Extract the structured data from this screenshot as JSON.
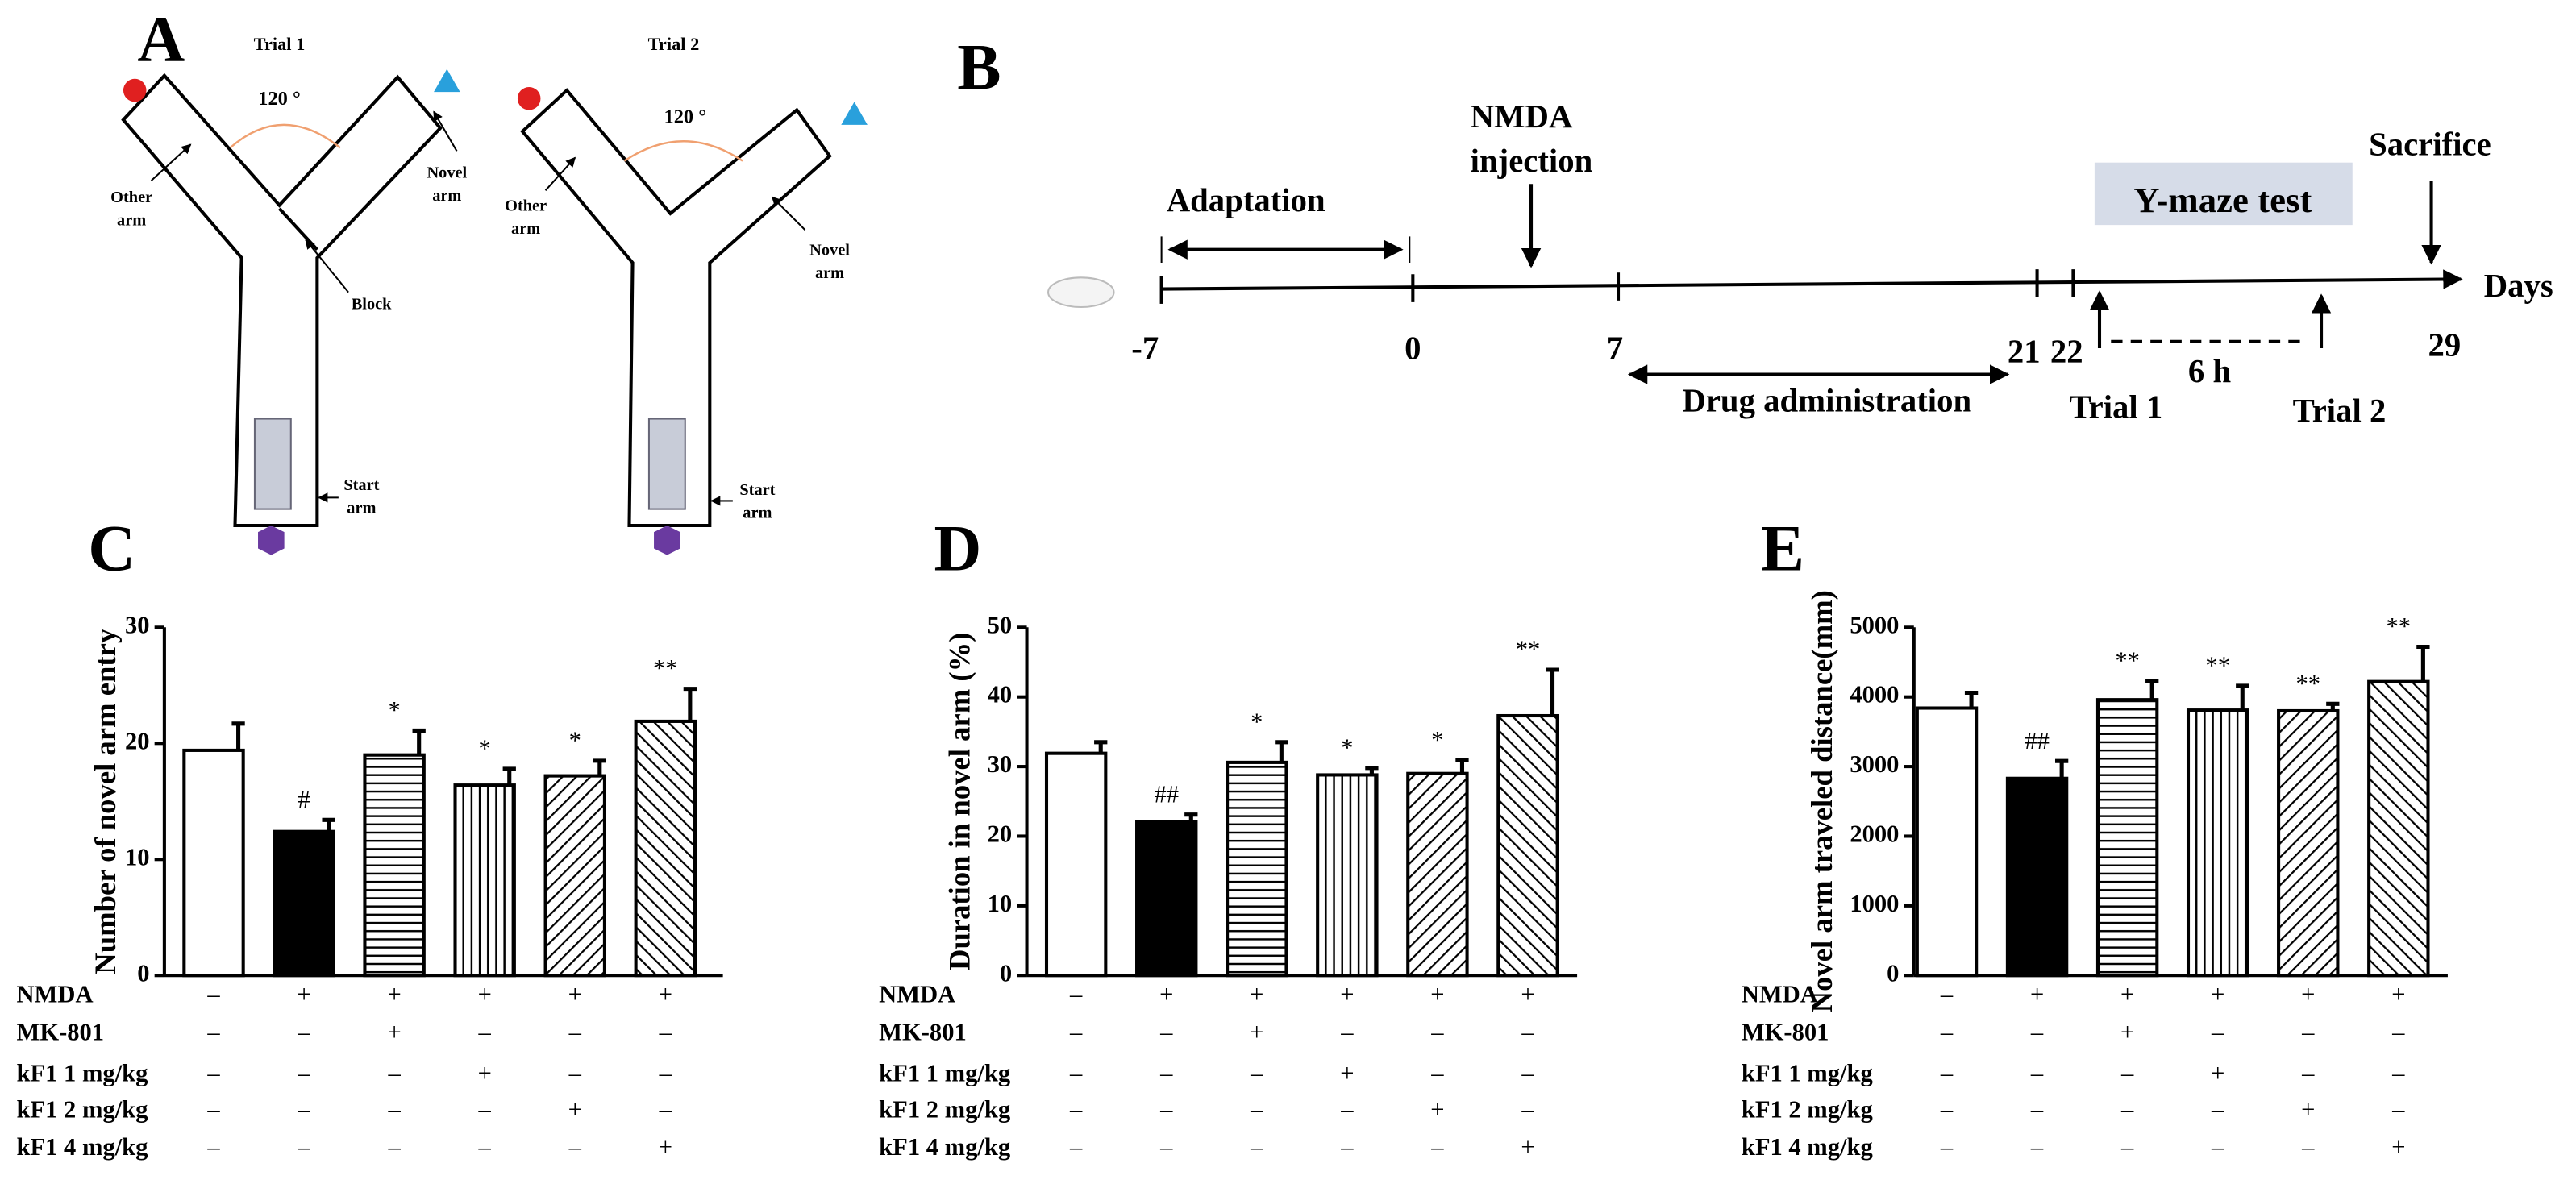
{
  "panel_a": {
    "label": "A",
    "mazes": [
      {
        "title": "Trial 1",
        "angle": "120 °",
        "other": [
          "Other",
          "arm"
        ],
        "novel": [
          "Novel",
          "arm"
        ],
        "block": "Block",
        "start": [
          "Start",
          "arm"
        ]
      },
      {
        "title": "Trial 2",
        "angle": "120 °",
        "other": [
          "Other",
          "arm"
        ],
        "novel": [
          "Novel",
          "arm"
        ],
        "start": [
          "Start",
          "arm"
        ]
      }
    ]
  },
  "panel_b": {
    "label": "B",
    "adaptation": "Adaptation",
    "nmda": [
      "NMDA",
      "injection"
    ],
    "ymaze": "Y-maze test",
    "sacrifice": "Sacrifice",
    "days": "Days",
    "ticks": [
      "-7",
      "0",
      "7",
      "21",
      "22",
      "29"
    ],
    "drug": "Drug administration",
    "interval": "6 h",
    "trial1": "Trial 1",
    "trial2": "Trial 2"
  },
  "chart_data": [
    {
      "type": "bar",
      "panel": "C",
      "ylabel": "Number of novel arm entry",
      "ylim": [
        0,
        30
      ],
      "yticks": [
        0,
        10,
        20,
        30
      ],
      "values": [
        19.4,
        12.4,
        19.0,
        16.4,
        17.2,
        21.9
      ],
      "errors": [
        2.3,
        1.0,
        2.1,
        1.4,
        1.3,
        2.8
      ],
      "sig_labels": [
        null,
        "#",
        "*",
        "*",
        "*",
        "**"
      ],
      "patterns": [
        "none",
        "solid",
        "horizontal",
        "vertical",
        "diagonal-up",
        "diagonal-down"
      ],
      "treatments": [
        {
          "name": "NMDA",
          "signs": [
            "–",
            "+",
            "+",
            "+",
            "+",
            "+"
          ]
        },
        {
          "name": "MK-801",
          "signs": [
            "–",
            "–",
            "+",
            "–",
            "–",
            "–"
          ]
        },
        {
          "name": "kF1 1 mg/kg",
          "signs": [
            "–",
            "–",
            "–",
            "+",
            "–",
            "–"
          ]
        },
        {
          "name": "kF1 2 mg/kg",
          "signs": [
            "–",
            "–",
            "–",
            "–",
            "+",
            "–"
          ]
        },
        {
          "name": "kF1 4 mg/kg",
          "signs": [
            "–",
            "–",
            "–",
            "–",
            "–",
            "+"
          ]
        }
      ]
    },
    {
      "type": "bar",
      "panel": "D",
      "ylabel": "Duration in novel arm (%)",
      "ylim": [
        0,
        50
      ],
      "yticks": [
        0,
        10,
        20,
        30,
        40,
        50
      ],
      "values": [
        31.9,
        22.1,
        30.6,
        28.8,
        29.0,
        37.3
      ],
      "errors": [
        1.6,
        1.0,
        2.9,
        1.0,
        1.9,
        6.6
      ],
      "sig_labels": [
        null,
        "##",
        "*",
        "*",
        "*",
        "**"
      ],
      "patterns": [
        "none",
        "solid",
        "horizontal",
        "vertical",
        "diagonal-up",
        "diagonal-down"
      ],
      "treatments": [
        {
          "name": "NMDA",
          "signs": [
            "–",
            "+",
            "+",
            "+",
            "+",
            "+"
          ]
        },
        {
          "name": "MK-801",
          "signs": [
            "–",
            "–",
            "+",
            "–",
            "–",
            "–"
          ]
        },
        {
          "name": "kF1 1 mg/kg",
          "signs": [
            "–",
            "–",
            "–",
            "+",
            "–",
            "–"
          ]
        },
        {
          "name": "kF1 2 mg/kg",
          "signs": [
            "–",
            "–",
            "–",
            "–",
            "+",
            "–"
          ]
        },
        {
          "name": "kF1 4 mg/kg",
          "signs": [
            "–",
            "–",
            "–",
            "–",
            "–",
            "+"
          ]
        }
      ]
    },
    {
      "type": "bar",
      "panel": "E",
      "ylabel": "Novel arm traveled distance(mm)",
      "ylim": [
        0,
        5000
      ],
      "yticks": [
        0,
        1000,
        2000,
        3000,
        4000,
        5000
      ],
      "values": [
        3840,
        2830,
        3960,
        3810,
        3800,
        4220
      ],
      "errors": [
        220,
        250,
        270,
        350,
        100,
        500
      ],
      "sig_labels": [
        null,
        "##",
        "**",
        "**",
        "**",
        "**"
      ],
      "patterns": [
        "none",
        "solid",
        "horizontal",
        "vertical",
        "diagonal-up",
        "diagonal-down"
      ],
      "treatments": [
        {
          "name": "NMDA",
          "signs": [
            "–",
            "+",
            "+",
            "+",
            "+",
            "+"
          ]
        },
        {
          "name": "MK-801",
          "signs": [
            "–",
            "–",
            "+",
            "–",
            "–",
            "–"
          ]
        },
        {
          "name": "kF1 1 mg/kg",
          "signs": [
            "–",
            "–",
            "–",
            "+",
            "–",
            "–"
          ]
        },
        {
          "name": "kF1 2 mg/kg",
          "signs": [
            "–",
            "–",
            "–",
            "–",
            "+",
            "–"
          ]
        },
        {
          "name": "kF1 4 mg/kg",
          "signs": [
            "–",
            "–",
            "–",
            "–",
            "–",
            "+"
          ]
        }
      ]
    }
  ]
}
